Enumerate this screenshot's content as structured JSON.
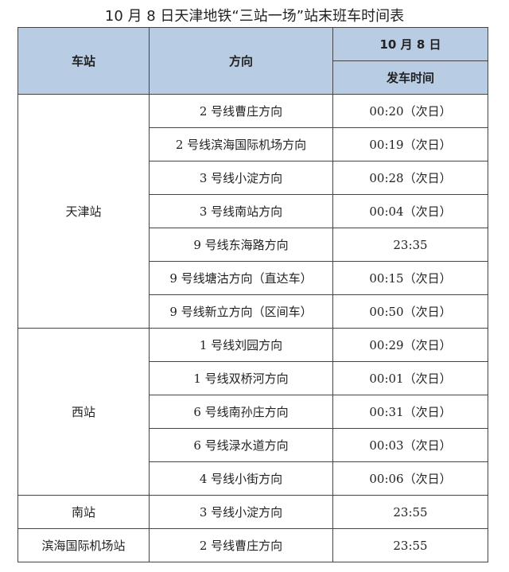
{
  "title": "10 月 8 日天津地铁“三站一场”站末班车时间表",
  "header": {
    "station": "车站",
    "direction": "方向",
    "date": "10 月 8 日",
    "time": "发车时间"
  },
  "colors": {
    "header_bg": "#b8cce4"
  },
  "groups": [
    {
      "station": "天津站",
      "rows": [
        {
          "direction": "2 号线曹庄方向",
          "time": "00:20（次日）"
        },
        {
          "direction": "2 号线滨海国际机场方向",
          "time": "00:19（次日）"
        },
        {
          "direction": "3 号线小淀方向",
          "time": "00:28（次日）"
        },
        {
          "direction": "3 号线南站方向",
          "time": "00:04（次日）"
        },
        {
          "direction": "9 号线东海路方向",
          "time": "23:35"
        },
        {
          "direction": "9 号线塘沽方向（直达车）",
          "time": "00:15（次日）"
        },
        {
          "direction": "9 号线新立方向（区间车）",
          "time": "00:50（次日）"
        }
      ]
    },
    {
      "station": "西站",
      "rows": [
        {
          "direction": "1 号线刘园方向",
          "time": "00:29（次日）"
        },
        {
          "direction": "1 号线双桥河方向",
          "time": "00:01（次日）"
        },
        {
          "direction": "6 号线南孙庄方向",
          "time": "00:31（次日）"
        },
        {
          "direction": "6 号线渌水道方向",
          "time": "00:03（次日）"
        },
        {
          "direction": "4 号线小街方向",
          "time": "00:06（次日）"
        }
      ]
    },
    {
      "station": "南站",
      "rows": [
        {
          "direction": "3 号线小淀方向",
          "time": "23:55"
        }
      ]
    },
    {
      "station": "滨海国际机场站",
      "rows": [
        {
          "direction": "2 号线曹庄方向",
          "time": "23:55"
        }
      ]
    }
  ]
}
